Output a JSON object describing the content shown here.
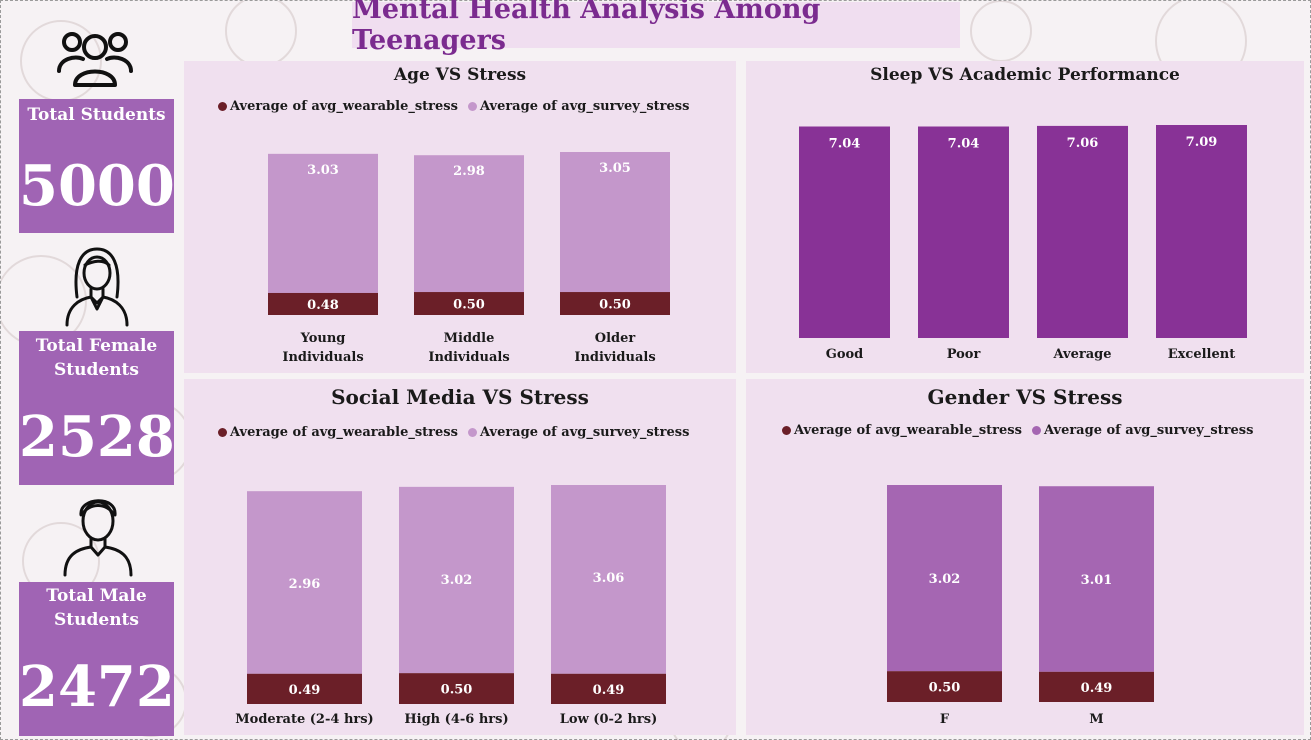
{
  "title": "Mental Health Analysis Among Teenagers",
  "colors": {
    "wearable": "#6b1f28",
    "survey_light": "#c497cb",
    "survey_medium": "#a566b2",
    "sleep_bar": "#883296",
    "kpi_bg": "#a064b4",
    "panel_bg": "#f0e0ef"
  },
  "kpis": [
    {
      "label": "Total Students",
      "value": "5000",
      "icon": "group-icon"
    },
    {
      "label": "Total Female Students",
      "value": "2528",
      "icon": "female-student-icon"
    },
    {
      "label": "Total Male Students",
      "value": "2472",
      "icon": "male-student-icon"
    }
  ],
  "chart_data": [
    {
      "type": "bar",
      "stacked": true,
      "title": "Age VS Stress",
      "categories": [
        "Young Individuals",
        "Middle Individuals",
        "Older Individuals"
      ],
      "series": [
        {
          "name": "Average of avg_wearable_stress",
          "values": [
            0.48,
            0.5,
            0.5
          ]
        },
        {
          "name": "Average of avg_survey_stress",
          "values": [
            3.03,
            2.98,
            3.05
          ]
        }
      ],
      "legend": "top"
    },
    {
      "type": "bar",
      "title": "Sleep VS Academic Performance",
      "categories": [
        "Good",
        "Poor",
        "Average",
        "Excellent"
      ],
      "values": [
        7.04,
        7.04,
        7.06,
        7.09
      ]
    },
    {
      "type": "bar",
      "stacked": true,
      "title": "Social Media VS Stress",
      "categories": [
        "Moderate (2-4 hrs)",
        "High (4-6 hrs)",
        "Low (0-2 hrs)"
      ],
      "series": [
        {
          "name": "Average of avg_wearable_stress",
          "values": [
            0.49,
            0.5,
            0.49
          ]
        },
        {
          "name": "Average of avg_survey_stress",
          "values": [
            2.96,
            3.02,
            3.06
          ]
        }
      ],
      "legend": "top"
    },
    {
      "type": "bar",
      "stacked": true,
      "title": "Gender VS Stress",
      "categories": [
        "F",
        "M"
      ],
      "series": [
        {
          "name": "Average of avg_wearable_stress",
          "values": [
            0.5,
            0.49
          ]
        },
        {
          "name": "Average of avg_survey_stress",
          "values": [
            3.02,
            3.01
          ]
        }
      ],
      "legend": "top"
    }
  ]
}
